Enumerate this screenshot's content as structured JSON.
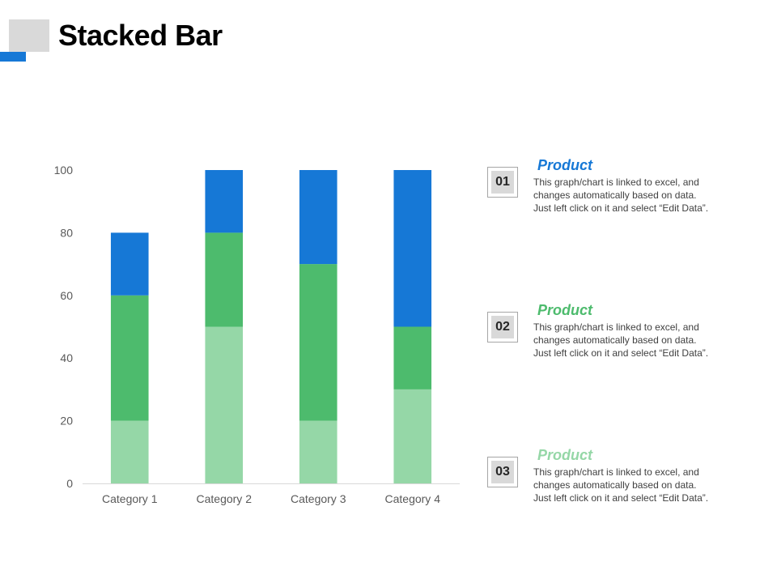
{
  "title": "Stacked Bar",
  "colors": {
    "accent": "#1678d6",
    "accent_square": "#d9d9d9"
  },
  "chart_data": {
    "type": "bar",
    "stacked": true,
    "categories": [
      "Category 1",
      "Category 2",
      "Category 3",
      "Category 4"
    ],
    "series": [
      {
        "values": [
          20,
          50,
          20,
          30
        ],
        "color": "#95d7a7"
      },
      {
        "values": [
          40,
          30,
          50,
          20
        ],
        "color": "#4dbb6d"
      },
      {
        "values": [
          20,
          20,
          30,
          50
        ],
        "color": "#1678d6"
      }
    ],
    "ylim": [
      0,
      100
    ],
    "yticks": [
      0,
      20,
      40,
      60,
      80,
      100
    ],
    "grid": false,
    "xlabel": "",
    "ylabel": ""
  },
  "legend": [
    {
      "number": "01",
      "title": "Product",
      "title_color": "#1678d6",
      "description": "This graph/chart is linked to excel, and\nchanges automatically based on data.\nJust left click on it and select “Edit Data”."
    },
    {
      "number": "02",
      "title": "Product",
      "title_color": "#4dbb6d",
      "description": "This graph/chart is linked to excel, and\nchanges automatically based on data.\nJust left click on it and select “Edit Data”."
    },
    {
      "number": "03",
      "title": "Product",
      "title_color": "#95d7a7",
      "description": "This graph/chart is linked to excel, and\nchanges automatically based on data.\nJust left click on it and select “Edit Data”."
    }
  ]
}
